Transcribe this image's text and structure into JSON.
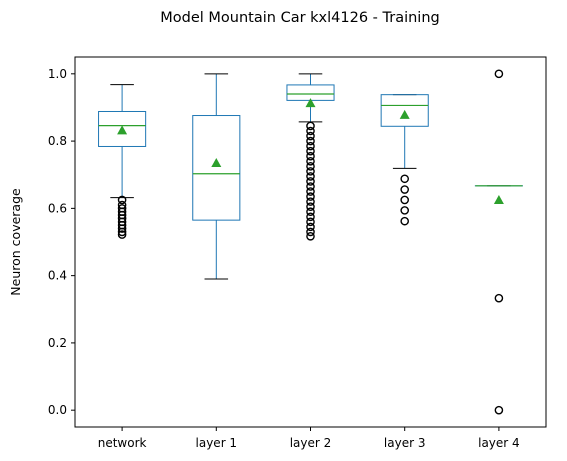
{
  "chart_data": {
    "type": "box",
    "title": "Model Mountain Car kxl4126 - Training",
    "xlabel": "",
    "ylabel": "Neuron coverage",
    "ylim": [
      -0.05,
      1.05
    ],
    "yticks": [
      0.0,
      0.2,
      0.4,
      0.6,
      0.8,
      1.0
    ],
    "ytick_labels": [
      "0.0",
      "0.2",
      "0.4",
      "0.6",
      "0.8",
      "1.0"
    ],
    "grid": false,
    "colors": {
      "box": "#1f77b4",
      "median": "#2ca02c",
      "mean": "#2ca02c",
      "whisker": "#000000",
      "flier": "#000000"
    },
    "boxes": [
      {
        "label": "network",
        "whislo": 0.632,
        "q1": 0.784,
        "median": 0.846,
        "q3": 0.888,
        "whishi": 0.968,
        "mean": 0.832,
        "fliers": [
          0.625,
          0.61,
          0.6,
          0.59,
          0.58,
          0.57,
          0.56,
          0.55,
          0.54,
          0.53,
          0.522
        ]
      },
      {
        "label": "layer 1",
        "whislo": 0.39,
        "q1": 0.565,
        "median": 0.703,
        "q3": 0.876,
        "whishi": 1.0,
        "mean": 0.735,
        "fliers": []
      },
      {
        "label": "layer 2",
        "whislo": 0.857,
        "q1": 0.921,
        "median": 0.94,
        "q3": 0.967,
        "whishi": 1.0,
        "mean": 0.913,
        "fliers": [
          0.845,
          0.83,
          0.815,
          0.8,
          0.785,
          0.77,
          0.755,
          0.74,
          0.725,
          0.71,
          0.695,
          0.68,
          0.665,
          0.65,
          0.635,
          0.62,
          0.605,
          0.59,
          0.575,
          0.56,
          0.545,
          0.53,
          0.517
        ]
      },
      {
        "label": "layer 3",
        "whislo": 0.719,
        "q1": 0.844,
        "median": 0.906,
        "q3": 0.938,
        "whishi": 0.938,
        "mean": 0.878,
        "fliers": [
          0.688,
          0.656,
          0.625,
          0.594,
          0.562
        ]
      },
      {
        "label": "layer 4",
        "whislo": 0.667,
        "q1": 0.667,
        "median": 0.667,
        "q3": 0.667,
        "whishi": 0.667,
        "mean": 0.625,
        "fliers": [
          1.0,
          0.333,
          0.0
        ]
      }
    ]
  }
}
